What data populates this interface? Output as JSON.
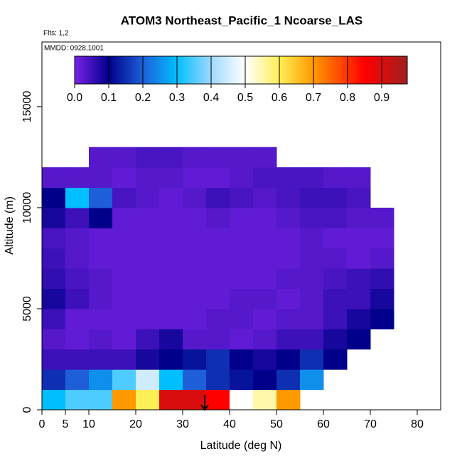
{
  "chart_data": {
    "type": "heatmap",
    "title": "ATOM3 Northeast_Pacific_1 Ncoarse_LAS",
    "subtitle": "Flts: 1,2",
    "annotation": "MMDD: 0928,1001",
    "x_label": "Latitude (deg N)",
    "y_label": "Altitude (m)",
    "xlim": [
      0,
      85
    ],
    "xticks": [
      0,
      5,
      10,
      20,
      30,
      40,
      50,
      60,
      70,
      80
    ],
    "ylim": [
      0,
      18200
    ],
    "yticks": [
      0,
      5000,
      10000,
      15000
    ],
    "x_edges": [
      0,
      5,
      10,
      15,
      20,
      25,
      30,
      35,
      40,
      45,
      50,
      55,
      60,
      65,
      70,
      75
    ],
    "y_edges": [
      0,
      1000,
      2000,
      3000,
      4000,
      5000,
      6000,
      7000,
      8000,
      9000,
      10000,
      11000,
      12000,
      13000
    ],
    "z": [
      [
        0.3,
        0.35,
        0.35,
        0.7,
        0.6,
        0.9,
        0.9,
        0.85,
        0.5,
        0.55,
        0.7,
        null,
        null,
        null,
        null
      ],
      [
        0.15,
        0.2,
        0.25,
        0.35,
        0.45,
        0.3,
        0.2,
        0.15,
        0.12,
        0.1,
        0.15,
        0.25,
        null,
        null,
        null
      ],
      [
        0.05,
        0.05,
        0.05,
        0.05,
        0.08,
        0.1,
        0.12,
        0.15,
        0.1,
        0.08,
        0.1,
        0.15,
        0.1,
        null,
        null
      ],
      [
        0.03,
        0.02,
        0.03,
        0.02,
        0.05,
        0.08,
        0.03,
        0.03,
        0.02,
        0.03,
        0.05,
        0.05,
        0.08,
        0.1,
        null
      ],
      [
        0.05,
        0.02,
        0.02,
        0.02,
        0.02,
        0.02,
        0.02,
        0.03,
        0.03,
        0.02,
        0.03,
        0.03,
        0.05,
        0.08,
        0.1
      ],
      [
        0.08,
        0.05,
        0.03,
        0.02,
        0.02,
        0.02,
        0.02,
        0.02,
        0.03,
        0.03,
        0.02,
        0.03,
        0.05,
        0.05,
        0.08
      ],
      [
        0.06,
        0.04,
        0.03,
        0.02,
        0.02,
        0.02,
        0.02,
        0.02,
        0.02,
        0.02,
        0.03,
        0.03,
        0.04,
        0.05,
        0.06
      ],
      [
        0.05,
        0.03,
        0.02,
        0.02,
        0.02,
        0.02,
        0.02,
        0.02,
        0.02,
        0.02,
        0.02,
        0.03,
        0.03,
        0.02,
        0.03
      ],
      [
        0.04,
        0.03,
        0.02,
        0.02,
        0.02,
        0.02,
        0.02,
        0.02,
        0.02,
        0.02,
        0.02,
        0.03,
        0.02,
        0.02,
        0.02
      ],
      [
        0.08,
        0.05,
        0.1,
        0.02,
        0.02,
        0.02,
        0.02,
        0.03,
        0.02,
        0.02,
        0.03,
        0.04,
        0.04,
        0.03,
        0.03
      ],
      [
        0.1,
        0.3,
        0.2,
        0.04,
        0.03,
        0.02,
        0.03,
        0.05,
        0.04,
        0.03,
        0.04,
        0.05,
        0.05,
        0.04,
        null
      ],
      [
        0.03,
        0.03,
        0.03,
        0.02,
        0.03,
        0.03,
        0.02,
        0.02,
        0.03,
        0.04,
        0.04,
        0.04,
        0.03,
        0.03,
        null
      ],
      [
        null,
        null,
        0.03,
        0.03,
        0.04,
        0.04,
        0.03,
        0.03,
        0.03,
        0.03,
        null,
        null,
        null,
        null,
        null
      ]
    ],
    "zlim": [
      0,
      0.975
    ],
    "zticks": [
      {
        "value": 0,
        "label": "0.0"
      },
      0.1,
      0.2,
      0.3,
      0.4,
      0.5,
      0.6,
      0.7,
      0.8,
      0.9
    ],
    "colorscale": [
      [
        0,
        "#7a22e6"
      ],
      [
        0.1,
        "#00008b"
      ],
      [
        0.2,
        "#1e5fd8"
      ],
      [
        0.3,
        "#00bfff"
      ],
      [
        0.4,
        "#9fd8ff"
      ],
      [
        0.5,
        "#ffffff"
      ],
      [
        0.6,
        "#ffee55"
      ],
      [
        0.7,
        "#ff9900"
      ],
      [
        0.85,
        "#ff0000"
      ],
      [
        0.975,
        "#a02020"
      ]
    ]
  }
}
